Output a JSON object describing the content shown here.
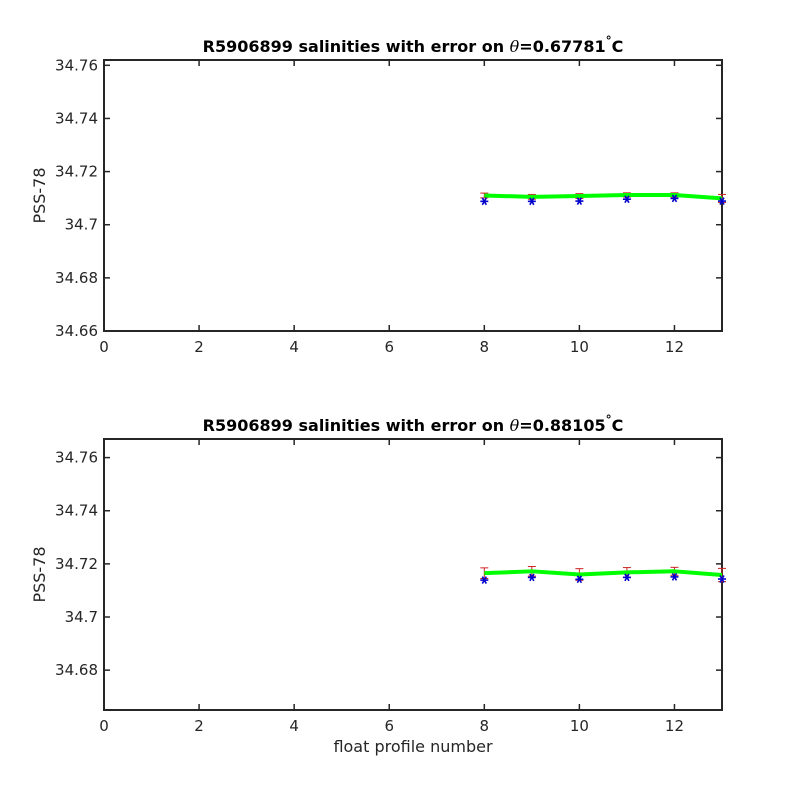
{
  "figure": {
    "xlabel": "float profile number"
  },
  "colors": {
    "fitted_line": "#00ff00",
    "observed_marker": "#0000cc",
    "error_bar": "#cc2222",
    "axes": "#262626"
  },
  "chart_data": [
    {
      "type": "line",
      "title_prefix": "R5906899 salinities with error on ",
      "title_theta": "θ",
      "title_value": "=0.67781",
      "title_degree": "°",
      "title_unit": "C",
      "ylabel": "PSS-78",
      "xlabel": "",
      "xlim": [
        0,
        13
      ],
      "ylim": [
        34.66,
        34.762
      ],
      "xticks": [
        0,
        2,
        4,
        6,
        8,
        10,
        12
      ],
      "yticks": [
        34.66,
        34.68,
        34.7,
        34.72,
        34.74,
        34.76
      ],
      "ytick_labels": [
        "34.66",
        "34.68",
        "34.7",
        "34.72",
        "34.74",
        "34.76"
      ],
      "grid": false,
      "series": [
        {
          "role": "fitted",
          "x": [
            8,
            9,
            10,
            11,
            12,
            13
          ],
          "y": [
            34.711,
            34.7105,
            34.7108,
            34.7112,
            34.7112,
            34.7099
          ],
          "err": [
            0.0009,
            0.0009,
            0.0009,
            0.0008,
            0.0008,
            0.0015
          ]
        },
        {
          "role": "observed",
          "x": [
            8,
            9,
            10,
            11,
            12,
            13
          ],
          "y": [
            34.7088,
            34.7088,
            34.7089,
            34.7096,
            34.7099,
            34.7089
          ]
        }
      ]
    },
    {
      "type": "line",
      "title_prefix": "R5906899 salinities with error on ",
      "title_theta": "θ",
      "title_value": "=0.88105",
      "title_degree": "°",
      "title_unit": "C",
      "ylabel": "PSS-78",
      "xlabel": "float profile number",
      "xlim": [
        0,
        13
      ],
      "ylim": [
        34.665,
        34.767
      ],
      "xticks": [
        0,
        2,
        4,
        6,
        8,
        10,
        12
      ],
      "yticks": [
        34.68,
        34.7,
        34.72,
        34.74,
        34.76
      ],
      "ytick_labels": [
        "34.68",
        "34.7",
        "34.72",
        "34.74",
        "34.76"
      ],
      "grid": false,
      "series": [
        {
          "role": "fitted",
          "x": [
            8,
            9,
            10,
            11,
            12,
            13
          ],
          "y": [
            34.7165,
            34.7172,
            34.716,
            34.7168,
            34.7172,
            34.7158
          ],
          "err": [
            0.002,
            0.0018,
            0.0022,
            0.0018,
            0.0015,
            0.0025
          ]
        },
        {
          "role": "observed",
          "x": [
            8,
            9,
            10,
            11,
            12,
            13
          ],
          "y": [
            34.7139,
            34.7149,
            34.7142,
            34.7149,
            34.7151,
            34.7143
          ]
        }
      ]
    }
  ]
}
